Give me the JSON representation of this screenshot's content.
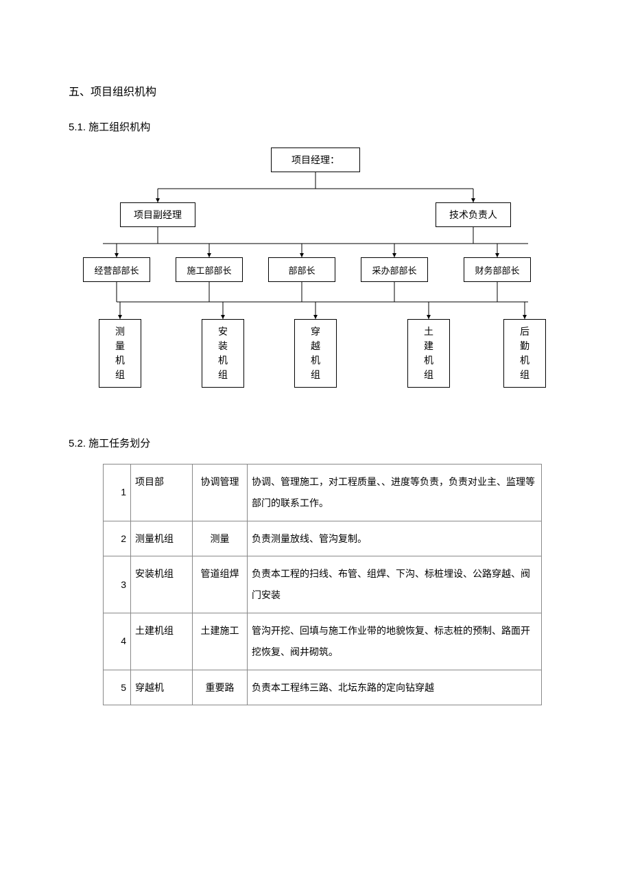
{
  "headings": {
    "h1": "五、项目组织机构",
    "h2a": "5.1. 施工组织机构",
    "h2b": "5.2. 施工任务划分"
  },
  "org": {
    "top": "项目经理：",
    "deputy": "项目副经理",
    "tech": "技术负责人",
    "depts": [
      "经营部部长",
      "施工部部长",
      "部部长",
      "采办部部长",
      "财务部部长"
    ],
    "teams": [
      "测量机组",
      "安装机组",
      "穿越机组",
      "土建机组",
      "后勤机组"
    ]
  },
  "table": {
    "rows": [
      {
        "n": "1",
        "dept": "项目部",
        "role": "协调管理",
        "desc": "协调、管理施工，对工程质量、、进度等负责，负责对业主、监理等部门的联系工作。"
      },
      {
        "n": "2",
        "dept": "测量机组",
        "role": "测量",
        "desc": "负责测量放线、管沟复制。"
      },
      {
        "n": "3",
        "dept": "安装机组",
        "role": "管道组焊",
        "desc": "负责本工程的扫线、布管、组焊、下沟、标桩埋设、公路穿越、阀门安装"
      },
      {
        "n": "4",
        "dept": "土建机组",
        "role": "土建施工",
        "desc": "管沟开挖、回填与施工作业带的地貌恢复、标志桩的预制、路面开挖恢复、阀井砌筑。"
      },
      {
        "n": "5",
        "dept": "穿越机",
        "role": "重要路",
        "desc": "负责本工程纬三路、北坛东路的定向钻穿越"
      }
    ]
  },
  "style": {
    "line_color": "#000000",
    "arrow_color": "#000000"
  }
}
